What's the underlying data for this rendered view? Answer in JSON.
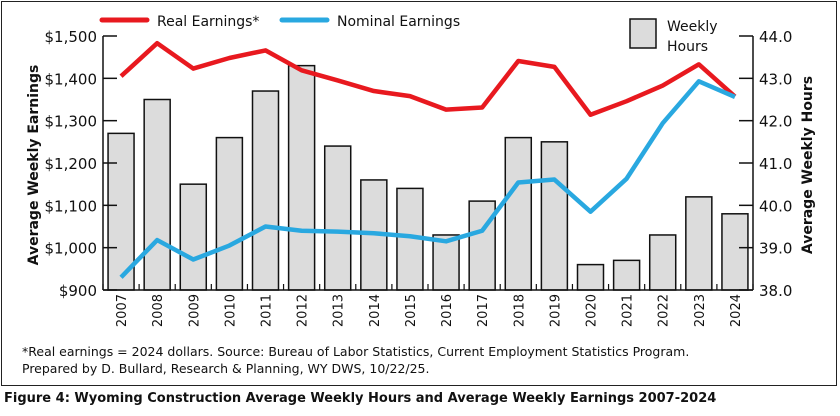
{
  "chart_data": {
    "type": "bar",
    "categories": [
      "2007",
      "2008",
      "2009",
      "2010",
      "2011",
      "2012",
      "2013",
      "2014",
      "2015",
      "2016",
      "2017",
      "2018",
      "2019",
      "2020",
      "2021",
      "2022",
      "2023",
      "2024"
    ],
    "series": [
      {
        "name": "Weekly Hours",
        "type": "bar",
        "axis": "right",
        "color": "#dcdcdc",
        "values": [
          41.7,
          42.5,
          40.5,
          41.6,
          42.7,
          43.3,
          41.4,
          40.6,
          40.4,
          39.3,
          40.1,
          41.6,
          41.5,
          38.6,
          38.7,
          39.3,
          40.2,
          39.8
        ]
      },
      {
        "name": "Real Earnings*",
        "type": "line",
        "axis": "left",
        "color": "#e8191f",
        "values": [
          1405,
          1483,
          1423,
          1448,
          1466,
          1419,
          1395,
          1370,
          1358,
          1326,
          1331,
          1441,
          1427,
          1314,
          1346,
          1383,
          1433,
          1357
        ]
      },
      {
        "name": "Nominal Earnings",
        "type": "line",
        "axis": "left",
        "color": "#29a8e0",
        "values": [
          930,
          1018,
          972,
          1005,
          1050,
          1040,
          1038,
          1034,
          1027,
          1015,
          1040,
          1154,
          1161,
          1085,
          1163,
          1294,
          1393,
          1356
        ]
      }
    ],
    "ylabel": "Average Weekly Earnings",
    "ylabel_right": "Average Weekly Hours",
    "ylim": [
      900,
      1500
    ],
    "ylim_right": [
      38,
      44
    ],
    "yticks": [
      "$900",
      "$1,000",
      "$1,100",
      "$1,200",
      "$1,300",
      "$1,400",
      "$1,500"
    ],
    "yticks_right": [
      "38.0",
      "39.0",
      "40.0",
      "41.0",
      "42.0",
      "43.0",
      "44.0"
    ],
    "legend": {
      "real": "Real Earnings*",
      "nominal": "Nominal Earnings",
      "hours_line1": "Weekly",
      "hours_line2": "Hours",
      "placement": "top"
    },
    "grid": false
  },
  "notes": {
    "line1": "*Real earnings = 2024 dollars. Source: Bureau of Labor Statistics, Current Employment Statistics Program.",
    "line2": "Prepared by D. Bullard, Research & Planning, WY DWS, 10/22/25."
  },
  "caption": "Figure 4: Wyoming Construction Average Weekly Hours and Average Weekly Earnings 2007-2024"
}
